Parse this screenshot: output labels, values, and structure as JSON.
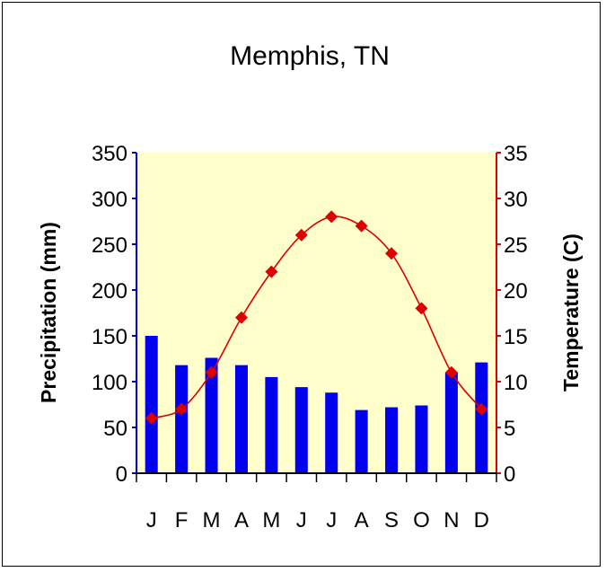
{
  "chart_data": {
    "type": "bar+line",
    "title": "Memphis, TN",
    "categories": [
      "J",
      "F",
      "M",
      "A",
      "M",
      "J",
      "J",
      "A",
      "S",
      "O",
      "N",
      "D"
    ],
    "series": [
      {
        "name": "Precipitation (mm)",
        "kind": "bar",
        "axis": "left",
        "values": [
          150,
          118,
          126,
          118,
          105,
          94,
          88,
          69,
          72,
          74,
          110,
          121
        ],
        "color": "#0000ee"
      },
      {
        "name": "Temperature (C)",
        "kind": "line",
        "axis": "right",
        "values": [
          6,
          7,
          11,
          17,
          22,
          26,
          28,
          27,
          24,
          18,
          11,
          7
        ],
        "color": "#dd0000"
      }
    ],
    "ylabel_left": "Precipitation (mm)",
    "ylabel_right": "Temperature (C)",
    "ylim_left": [
      0,
      350
    ],
    "ylim_right": [
      0,
      35
    ],
    "yticks_left": [
      "0",
      "50",
      "100",
      "150",
      "200",
      "250",
      "300",
      "350"
    ],
    "yticks_right": [
      "0",
      "5",
      "10",
      "15",
      "20",
      "25",
      "30",
      "35"
    ],
    "plot_background": "#ffffcc",
    "left_axis_color": "#0000cc",
    "right_axis_color": "#dd0000",
    "grid": false
  }
}
